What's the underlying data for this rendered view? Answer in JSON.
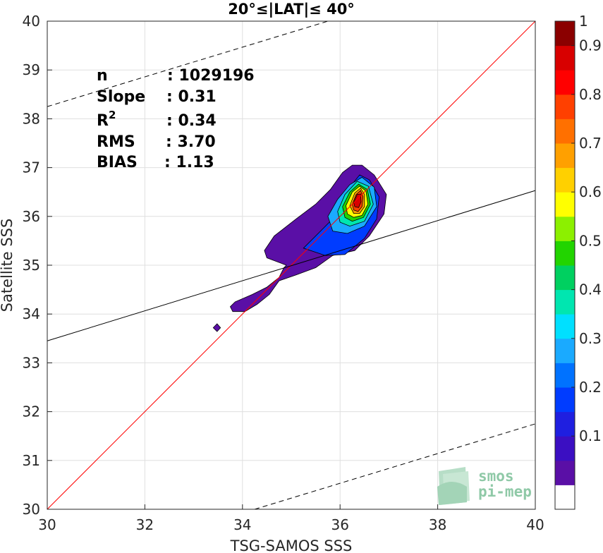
{
  "chart_data": {
    "type": "heatmap",
    "title": "20°≤|LAT|≤ 40°",
    "xlabel": "TSG-SAMOS SSS",
    "ylabel": "Satellite SSS",
    "xlim": [
      30,
      40
    ],
    "ylim": [
      30,
      40
    ],
    "xticks": [
      "30",
      "32",
      "34",
      "36",
      "38",
      "40"
    ],
    "yticks": [
      "30",
      "31",
      "32",
      "33",
      "34",
      "35",
      "36",
      "37",
      "38",
      "39",
      "40"
    ],
    "grid": true,
    "stats": [
      {
        "label": "n",
        "value": ": 1029196"
      },
      {
        "label": "Slope",
        "value": ": 0.31"
      },
      {
        "label": "R",
        "sup": "2",
        "value": ": 0.34"
      },
      {
        "label": "RMS",
        "value": ": 3.70"
      },
      {
        "label": "BIAS",
        "value": ": 1.13"
      }
    ],
    "lines": [
      {
        "name": "1:1 line",
        "color": "#ff0000",
        "style": "solid",
        "points": [
          [
            30,
            30
          ],
          [
            40,
            40
          ]
        ]
      },
      {
        "name": "regression",
        "color": "#000000",
        "style": "solid",
        "points": [
          [
            30,
            33.45
          ],
          [
            40,
            36.53
          ]
        ]
      },
      {
        "name": "upper bound",
        "color": "#000000",
        "style": "dashed",
        "points": [
          [
            30,
            38.25
          ],
          [
            35.75,
            40
          ]
        ]
      },
      {
        "name": "lower bound",
        "color": "#000000",
        "style": "dashed",
        "points": [
          [
            34.25,
            30
          ],
          [
            40,
            31.75
          ]
        ]
      }
    ],
    "contours": [
      {
        "level": 0.05,
        "polygons": [
          [
            [
              33.75,
              34.15
            ],
            [
              33.85,
              34.25
            ],
            [
              34.2,
              34.4
            ],
            [
              34.5,
              34.55
            ],
            [
              34.75,
              34.75
            ],
            [
              34.85,
              34.95
            ],
            [
              34.9,
              35.0
            ],
            [
              34.5,
              35.15
            ],
            [
              34.45,
              35.3
            ],
            [
              34.65,
              35.6
            ],
            [
              35.1,
              35.95
            ],
            [
              35.5,
              36.25
            ],
            [
              35.8,
              36.55
            ],
            [
              36.05,
              36.9
            ],
            [
              36.25,
              37.05
            ],
            [
              36.45,
              37.05
            ],
            [
              36.7,
              36.85
            ],
            [
              36.95,
              36.45
            ],
            [
              36.9,
              36.05
            ],
            [
              36.6,
              35.6
            ],
            [
              36.3,
              35.3
            ],
            [
              35.85,
              35.2
            ],
            [
              35.5,
              34.95
            ],
            [
              35.1,
              34.8
            ],
            [
              34.75,
              34.68
            ],
            [
              34.55,
              34.4
            ],
            [
              34.3,
              34.2
            ],
            [
              34.05,
              34.05
            ],
            [
              33.8,
              34.05
            ]
          ],
          [
            [
              33.4,
              33.72
            ],
            [
              33.48,
              33.8
            ],
            [
              33.55,
              33.72
            ],
            [
              33.48,
              33.64
            ]
          ]
        ]
      },
      {
        "level": 0.2,
        "polygons": [
          [
            [
              35.25,
              35.35
            ],
            [
              35.6,
              35.7
            ],
            [
              35.95,
              36.05
            ],
            [
              36.2,
              36.6
            ],
            [
              36.4,
              36.85
            ],
            [
              36.6,
              36.75
            ],
            [
              36.8,
              36.4
            ],
            [
              36.75,
              35.95
            ],
            [
              36.5,
              35.55
            ],
            [
              36.1,
              35.22
            ],
            [
              35.7,
              35.2
            ]
          ]
        ]
      },
      {
        "level": 0.3,
        "polygons": [
          [
            [
              35.75,
              36.0
            ],
            [
              35.95,
              36.35
            ],
            [
              36.2,
              36.65
            ],
            [
              36.45,
              36.8
            ],
            [
              36.7,
              36.6
            ],
            [
              36.75,
              36.2
            ],
            [
              36.5,
              35.8
            ],
            [
              36.15,
              35.65
            ],
            [
              35.85,
              35.7
            ]
          ]
        ]
      },
      {
        "level": 0.4,
        "polygons": [
          [
            [
              35.95,
              36.1
            ],
            [
              36.1,
              36.45
            ],
            [
              36.35,
              36.72
            ],
            [
              36.58,
              36.62
            ],
            [
              36.68,
              36.25
            ],
            [
              36.5,
              35.9
            ],
            [
              36.2,
              35.8
            ],
            [
              36.0,
              35.88
            ]
          ]
        ]
      },
      {
        "level": 0.5,
        "polygons": [
          [
            [
              36.05,
              36.2
            ],
            [
              36.2,
              36.5
            ],
            [
              36.38,
              36.66
            ],
            [
              36.56,
              36.55
            ],
            [
              36.62,
              36.25
            ],
            [
              36.48,
              35.98
            ],
            [
              36.25,
              35.9
            ],
            [
              36.1,
              35.98
            ]
          ]
        ]
      },
      {
        "level": 0.6,
        "polygons": [
          [
            [
              36.12,
              36.22
            ],
            [
              36.25,
              36.5
            ],
            [
              36.4,
              36.62
            ],
            [
              36.53,
              36.52
            ],
            [
              36.57,
              36.25
            ],
            [
              36.45,
              36.02
            ],
            [
              36.28,
              35.98
            ],
            [
              36.15,
              36.05
            ]
          ]
        ]
      },
      {
        "level": 0.7,
        "polygons": [
          [
            [
              36.2,
              36.22
            ],
            [
              36.3,
              36.48
            ],
            [
              36.42,
              36.58
            ],
            [
              36.5,
              36.45
            ],
            [
              36.5,
              36.2
            ],
            [
              36.4,
              36.06
            ],
            [
              36.28,
              36.06
            ]
          ]
        ]
      },
      {
        "level": 0.8,
        "polygons": [
          [
            [
              36.25,
              36.25
            ],
            [
              36.33,
              36.45
            ],
            [
              36.42,
              36.53
            ],
            [
              36.47,
              36.4
            ],
            [
              36.45,
              36.2
            ],
            [
              36.37,
              36.1
            ],
            [
              36.28,
              36.13
            ]
          ]
        ]
      },
      {
        "level": 0.9,
        "polygons": [
          [
            [
              36.28,
              36.28
            ],
            [
              36.35,
              36.45
            ],
            [
              36.42,
              36.46
            ],
            [
              36.43,
              36.3
            ],
            [
              36.38,
              36.18
            ],
            [
              36.3,
              36.2
            ]
          ]
        ]
      }
    ],
    "colorbar": {
      "ticks": [
        "0.1",
        "0.2",
        "0.3",
        "0.4",
        "0.5",
        "0.6",
        "0.7",
        "0.8",
        "0.9",
        "1"
      ],
      "colors": [
        "#ffffff",
        "#5a0fa6",
        "#3b0fc2",
        "#1f1fe0",
        "#003cff",
        "#0072ff",
        "#1aaaff",
        "#00e0ff",
        "#00e6b0",
        "#00d060",
        "#22d400",
        "#8cf000",
        "#ffff00",
        "#ffd000",
        "#ffa000",
        "#ff7000",
        "#ff4000",
        "#ff0000",
        "#d80000",
        "#8b0000"
      ]
    }
  },
  "logo": {
    "line1": "smos",
    "line2": "pi-mep"
  }
}
